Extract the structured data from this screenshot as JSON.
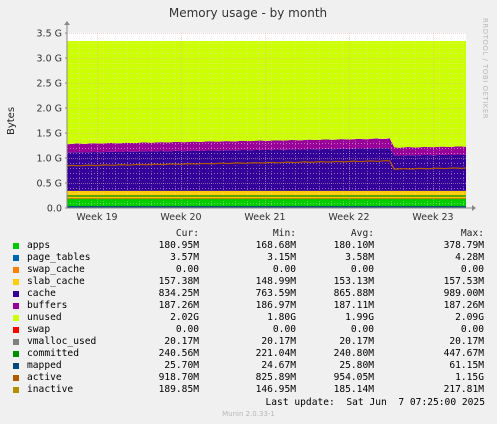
{
  "chart_data": {
    "type": "area",
    "title": "Memory usage - by month",
    "ylabel": "Bytes",
    "xlabel": "",
    "ylim": [
      0,
      3.5
    ],
    "y_unit": "G",
    "y_ticks": [
      "0.0",
      "0.5 G",
      "1.0 G",
      "1.5 G",
      "2.0 G",
      "2.5 G",
      "3.0 G",
      "3.5 G"
    ],
    "x_ticks": [
      "Week 19",
      "Week 20",
      "Week 21",
      "Week 22",
      "Week 23"
    ],
    "grid": true,
    "stacked_series": [
      {
        "name": "apps",
        "color": "#00cc00",
        "value_gb": 0.181
      },
      {
        "name": "page_tables",
        "color": "#0066b3",
        "value_gb": 0.0036
      },
      {
        "name": "swap_cache",
        "color": "#ff8000",
        "value_gb": 0.0
      },
      {
        "name": "slab_cache",
        "color": "#ffcc00",
        "value_gb": 0.157
      },
      {
        "name": "cache",
        "color": "#330099",
        "value_gb": 0.834
      },
      {
        "name": "buffers",
        "color": "#990099",
        "value_gb": 0.187
      },
      {
        "name": "unused",
        "color": "#ccff00",
        "value_gb": 2.02
      },
      {
        "name": "swap",
        "color": "#ff0000",
        "value_gb": 0.0
      }
    ],
    "line_series": [
      {
        "name": "vmalloc_used",
        "color": "#808080",
        "value_gb": 0.0202
      },
      {
        "name": "committed",
        "color": "#008f00",
        "value_gb": 0.2406
      },
      {
        "name": "mapped",
        "color": "#00487d",
        "value_gb": 0.0257
      },
      {
        "name": "active",
        "color": "#b35a00",
        "value_gb": 0.919
      },
      {
        "name": "inactive",
        "color": "#b38f00",
        "value_gb": 0.19
      }
    ],
    "legend": {
      "headers": {
        "cur": "Cur:",
        "min": "Min:",
        "avg": "Avg:",
        "max": "Max:"
      },
      "rows": [
        {
          "name": "apps",
          "color": "#00cc00",
          "cur": "180.95M",
          "min": "168.68M",
          "avg": "180.10M",
          "max": "378.79M"
        },
        {
          "name": "page_tables",
          "color": "#0066b3",
          "cur": "3.57M",
          "min": "3.15M",
          "avg": "3.58M",
          "max": "4.28M"
        },
        {
          "name": "swap_cache",
          "color": "#ff8000",
          "cur": "0.00",
          "min": "0.00",
          "avg": "0.00",
          "max": "0.00"
        },
        {
          "name": "slab_cache",
          "color": "#ffcc00",
          "cur": "157.38M",
          "min": "148.99M",
          "avg": "153.13M",
          "max": "157.53M"
        },
        {
          "name": "cache",
          "color": "#330099",
          "cur": "834.25M",
          "min": "763.59M",
          "avg": "865.88M",
          "max": "989.00M"
        },
        {
          "name": "buffers",
          "color": "#990099",
          "cur": "187.26M",
          "min": "186.97M",
          "avg": "187.11M",
          "max": "187.26M"
        },
        {
          "name": "unused",
          "color": "#ccff00",
          "cur": "2.02G",
          "min": "1.80G",
          "avg": "1.99G",
          "max": "2.09G"
        },
        {
          "name": "swap",
          "color": "#ff0000",
          "cur": "0.00",
          "min": "0.00",
          "avg": "0.00",
          "max": "0.00"
        },
        {
          "name": "vmalloc_used",
          "color": "#808080",
          "cur": "20.17M",
          "min": "20.17M",
          "avg": "20.17M",
          "max": "20.17M"
        },
        {
          "name": "committed",
          "color": "#008f00",
          "cur": "240.56M",
          "min": "221.04M",
          "avg": "240.80M",
          "max": "447.67M"
        },
        {
          "name": "mapped",
          "color": "#00487d",
          "cur": "25.70M",
          "min": "24.67M",
          "avg": "25.80M",
          "max": "61.15M"
        },
        {
          "name": "active",
          "color": "#b35a00",
          "cur": "918.70M",
          "min": "825.89M",
          "avg": "954.05M",
          "max": "1.15G"
        },
        {
          "name": "inactive",
          "color": "#b38f00",
          "cur": "189.85M",
          "min": "146.95M",
          "avg": "185.14M",
          "max": "217.81M"
        }
      ]
    }
  },
  "footer": {
    "last_update": "Last update:  Sat Jun  7 07:25:00 2025",
    "munin_version": "Munin 2.0.33-1",
    "rrd_credit": "RRDTOOL / TOBI OETIKER"
  }
}
